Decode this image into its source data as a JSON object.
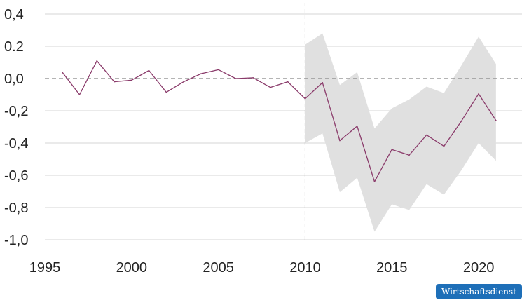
{
  "chart_data": {
    "type": "line",
    "title": "",
    "xlabel": "",
    "ylabel": "",
    "xlim": [
      1995,
      2022.5
    ],
    "ylim": [
      -1.0,
      0.4
    ],
    "x_ticks": [
      1995,
      2000,
      2005,
      2010,
      2015,
      2020
    ],
    "x_tick_labels": [
      "1995",
      "2000",
      "2005",
      "2010",
      "2015",
      "2020"
    ],
    "y_ticks": [
      0.4,
      0.2,
      0.0,
      -0.2,
      -0.4,
      -0.6,
      -0.8,
      -1.0
    ],
    "y_tick_labels": [
      "0,4",
      "0.2",
      "0,0",
      "-0,2",
      "-0,4",
      "-0,6",
      "-0,8",
      "-1,0"
    ],
    "grid": "horizontal",
    "reference_line_y": 0.0,
    "reference_line_x": 2010,
    "series": [
      {
        "color": "#8a3a6a",
        "x": [
          1996,
          1997,
          1998,
          1999,
          2000,
          2001,
          2002,
          2003,
          2004,
          2005,
          2006,
          2007,
          2008,
          2009,
          2010,
          2011,
          2012,
          2013,
          2014,
          2015,
          2016,
          2017,
          2018,
          2019,
          2020,
          2021
        ],
        "values": [
          0.04,
          -0.1,
          0.11,
          -0.02,
          -0.01,
          0.05,
          -0.085,
          -0.02,
          0.03,
          0.055,
          0.0,
          0.005,
          -0.055,
          -0.02,
          -0.125,
          -0.025,
          -0.385,
          -0.295,
          -0.64,
          -0.44,
          -0.475,
          -0.35,
          -0.42,
          -0.265,
          -0.095,
          -0.26
        ]
      }
    ],
    "band": {
      "color": "#e0e0e0",
      "x": [
        2010,
        2011,
        2012,
        2013,
        2014,
        2015,
        2016,
        2017,
        2018,
        2019,
        2020,
        2021
      ],
      "upper": [
        0.21,
        0.28,
        -0.04,
        0.04,
        -0.31,
        -0.185,
        -0.13,
        -0.05,
        -0.09,
        0.08,
        0.26,
        0.09
      ],
      "lower": [
        -0.4,
        -0.34,
        -0.705,
        -0.615,
        -0.95,
        -0.78,
        -0.815,
        -0.655,
        -0.72,
        -0.57,
        -0.4,
        -0.51
      ]
    }
  },
  "source_badge": "Wirtschaftsdienst"
}
